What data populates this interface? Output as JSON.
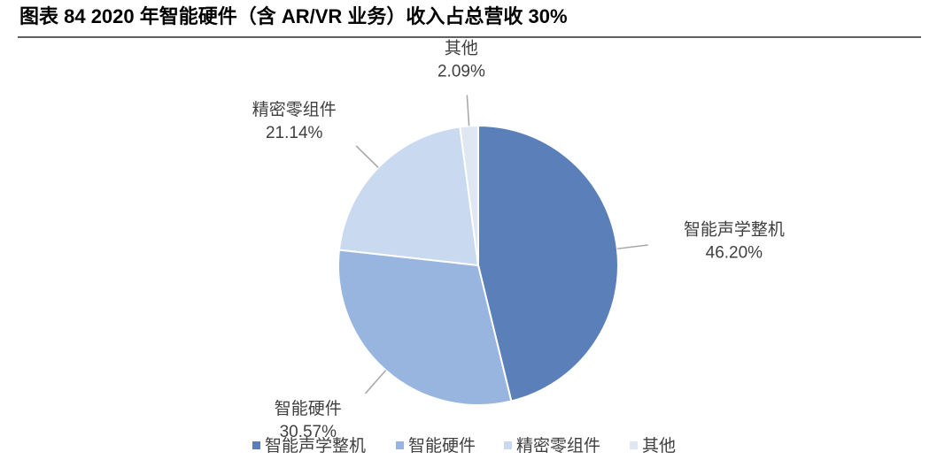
{
  "chart_data": {
    "type": "pie",
    "title": "图表 84 2020 年智能硬件（含 AR/VR 业务）收入占总营收 30%",
    "categories": [
      "智能声学整机",
      "智能硬件",
      "精密零组件",
      "其他"
    ],
    "values": [
      46.2,
      30.57,
      21.14,
      2.09
    ],
    "value_labels": [
      "46.20%",
      "30.57%",
      "21.14%",
      "2.09%"
    ],
    "colors": [
      "#5b80b9",
      "#97b5df",
      "#c9d9ef",
      "#dfe7f3"
    ],
    "legend": "bottom"
  }
}
